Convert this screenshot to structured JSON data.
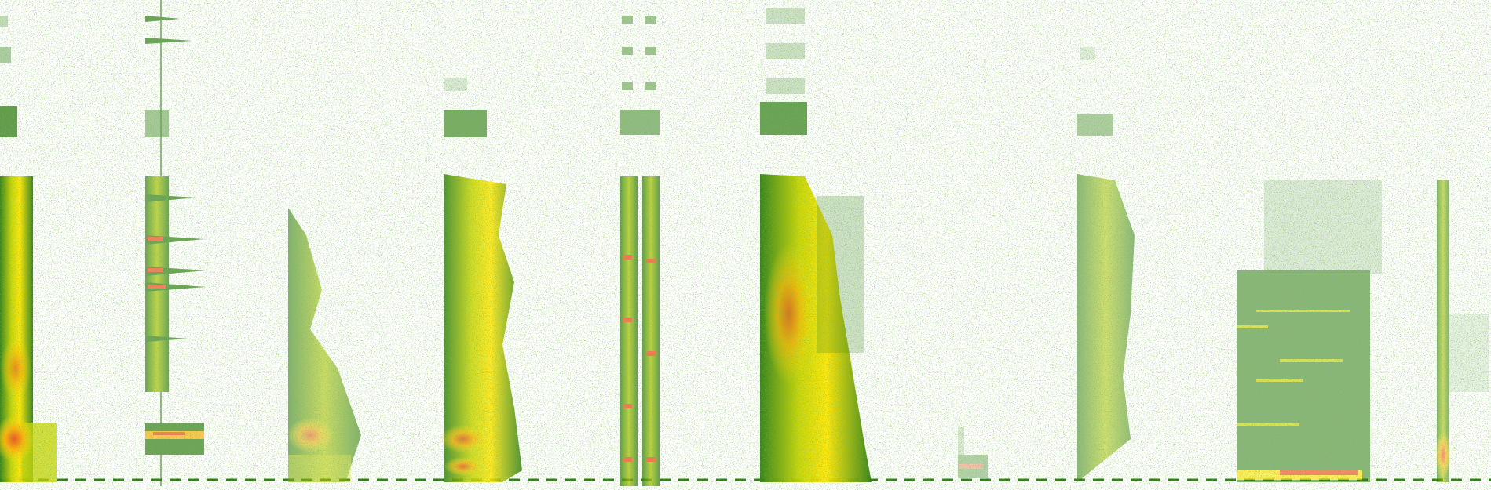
{
  "image": {
    "kind": "spectrogram",
    "background": "#ffffff",
    "palette": {
      "low": "#2e7d12",
      "mid": "#c6d400",
      "high": "#ffe600",
      "peak": "#f04a1a"
    },
    "segments": [
      {
        "id": "seg-1",
        "label": "",
        "intensity": 0.95
      },
      {
        "id": "seg-2",
        "label": "",
        "intensity": 0.7
      },
      {
        "id": "seg-3",
        "label": "",
        "intensity": 0.6
      },
      {
        "id": "seg-4",
        "label": "",
        "intensity": 0.85
      },
      {
        "id": "seg-5",
        "label": "",
        "intensity": 0.75
      },
      {
        "id": "seg-6",
        "label": "",
        "intensity": 0.95
      },
      {
        "id": "seg-7",
        "label": "",
        "intensity": 0.35
      },
      {
        "id": "seg-8",
        "label": "",
        "intensity": 0.55
      },
      {
        "id": "seg-9",
        "label": "",
        "intensity": 0.65
      },
      {
        "id": "seg-10",
        "label": "",
        "intensity": 0.6
      }
    ]
  }
}
